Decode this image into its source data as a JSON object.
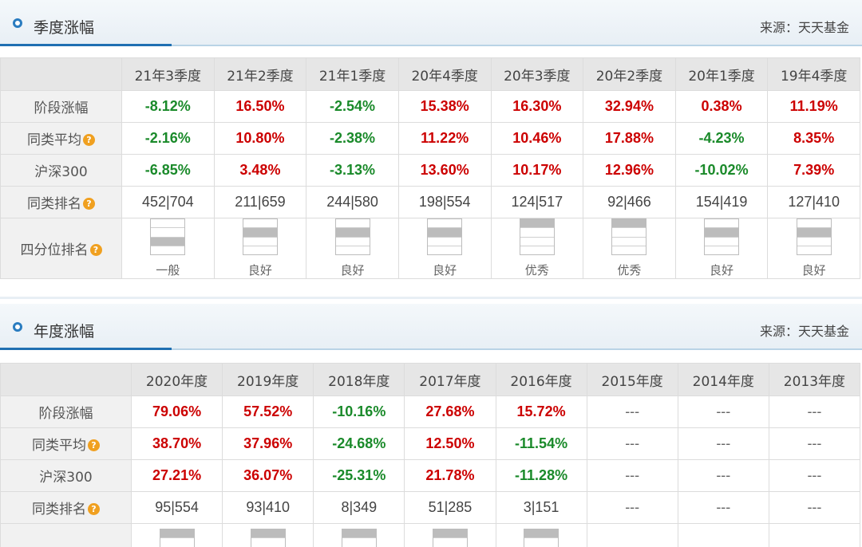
{
  "quarter_panel": {
    "title": "季度涨幅",
    "source": "来源：天天基金",
    "headers": [
      "21年3季度",
      "21年2季度",
      "21年1季度",
      "20年4季度",
      "20年3季度",
      "20年2季度",
      "20年1季度",
      "19年4季度"
    ],
    "rows": {
      "stage": {
        "label": "阶段涨幅",
        "values": [
          "-8.12%",
          "16.50%",
          "-2.54%",
          "15.38%",
          "16.30%",
          "32.94%",
          "0.38%",
          "11.19%"
        ]
      },
      "peer": {
        "label": "同类平均",
        "values": [
          "-2.16%",
          "10.80%",
          "-2.38%",
          "11.22%",
          "10.46%",
          "17.88%",
          "-4.23%",
          "8.35%"
        ]
      },
      "hs300": {
        "label": "沪深300",
        "values": [
          "-6.85%",
          "3.48%",
          "-3.13%",
          "13.60%",
          "10.17%",
          "12.96%",
          "-10.02%",
          "7.39%"
        ]
      },
      "rank": {
        "label": "同类排名",
        "values": [
          "452|704",
          "211|659",
          "244|580",
          "198|554",
          "124|517",
          "92|466",
          "154|419",
          "127|410"
        ]
      },
      "quartile": {
        "label": "四分位排名",
        "levels": [
          2,
          3,
          3,
          3,
          4,
          4,
          3,
          3
        ],
        "values": [
          "一般",
          "良好",
          "良好",
          "良好",
          "优秀",
          "优秀",
          "良好",
          "良好"
        ]
      }
    }
  },
  "year_panel": {
    "title": "年度涨幅",
    "source": "来源：天天基金",
    "headers": [
      "2020年度",
      "2019年度",
      "2018年度",
      "2017年度",
      "2016年度",
      "2015年度",
      "2014年度",
      "2013年度"
    ],
    "rows": {
      "stage": {
        "label": "阶段涨幅",
        "values": [
          "79.06%",
          "57.52%",
          "-10.16%",
          "27.68%",
          "15.72%",
          "---",
          "---",
          "---"
        ]
      },
      "peer": {
        "label": "同类平均",
        "values": [
          "38.70%",
          "37.96%",
          "-24.68%",
          "12.50%",
          "-11.54%",
          "---",
          "---",
          "---"
        ]
      },
      "hs300": {
        "label": "沪深300",
        "values": [
          "27.21%",
          "36.07%",
          "-25.31%",
          "21.78%",
          "-11.28%",
          "---",
          "---",
          "---"
        ]
      },
      "rank": {
        "label": "同类排名",
        "values": [
          "95|554",
          "93|410",
          "8|349",
          "51|285",
          "3|151",
          "---",
          "---",
          "---"
        ]
      },
      "quartile": {
        "levels": [
          4,
          4,
          4,
          4,
          4,
          0,
          0,
          0
        ]
      }
    }
  },
  "colors": {
    "up": "#cc0000",
    "down": "#1a8a2a",
    "accent": "#1f6fb2"
  },
  "icons": {
    "header_marker": "ring-icon",
    "help": "question-icon"
  }
}
